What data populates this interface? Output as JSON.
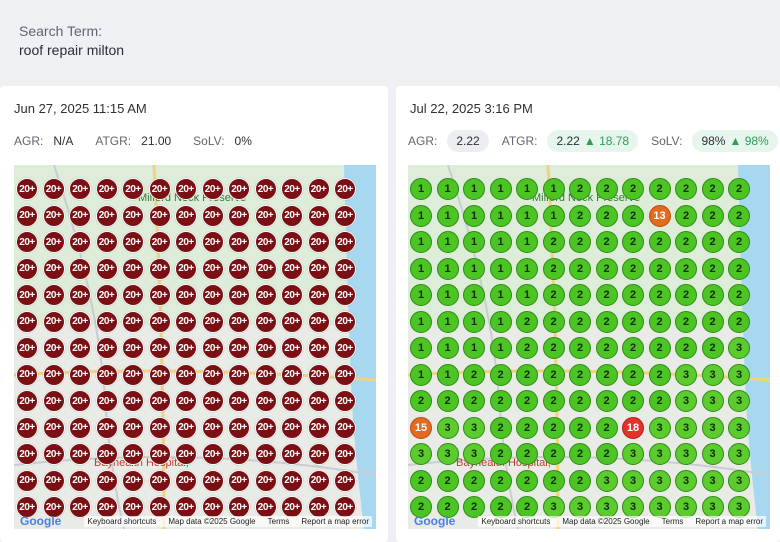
{
  "search": {
    "label": "Search Term:",
    "value": "roof repair milton"
  },
  "colors": {
    "rank_20plus": "#7a0f14",
    "rank_top3": "#4cc424",
    "rank_mid": "#e36a1e",
    "rank_high": "#e3322a",
    "water": "#a8d8f0",
    "map_bg": "#e9ece6"
  },
  "left": {
    "date": "Jun 27, 2025 11:15 AM",
    "metrics": {
      "agr_label": "AGR:",
      "agr_value": "N/A",
      "atgr_label": "ATGR:",
      "atgr_value": "21.00",
      "solv_label": "SoLV:",
      "solv_value": "0%"
    },
    "grid": [
      [
        "20+",
        "20+",
        "20+",
        "20+",
        "20+",
        "20+",
        "20+",
        "20+",
        "20+",
        "20+",
        "20+",
        "20+",
        "20+"
      ],
      [
        "20+",
        "20+",
        "20+",
        "20+",
        "20+",
        "20+",
        "20+",
        "20+",
        "20+",
        "20+",
        "20+",
        "20+",
        "20+"
      ],
      [
        "20+",
        "20+",
        "20+",
        "20+",
        "20+",
        "20+",
        "20+",
        "20+",
        "20+",
        "20+",
        "20+",
        "20+",
        "20+"
      ],
      [
        "20+",
        "20+",
        "20+",
        "20+",
        "20+",
        "20+",
        "20+",
        "20+",
        "20+",
        "20+",
        "20+",
        "20+",
        "20+"
      ],
      [
        "20+",
        "20+",
        "20+",
        "20+",
        "20+",
        "20+",
        "20+",
        "20+",
        "20+",
        "20+",
        "20+",
        "20+",
        "20+"
      ],
      [
        "20+",
        "20+",
        "20+",
        "20+",
        "20+",
        "20+",
        "20+",
        "20+",
        "20+",
        "20+",
        "20+",
        "20+",
        "20+"
      ],
      [
        "20+",
        "20+",
        "20+",
        "20+",
        "20+",
        "20+",
        "20+",
        "20+",
        "20+",
        "20+",
        "20+",
        "20+",
        "20+"
      ],
      [
        "20+",
        "20+",
        "20+",
        "20+",
        "20+",
        "20+",
        "20+",
        "20+",
        "20+",
        "20+",
        "20+",
        "20+",
        "20+"
      ],
      [
        "20+",
        "20+",
        "20+",
        "20+",
        "20+",
        "20+",
        "20+",
        "20+",
        "20+",
        "20+",
        "20+",
        "20+",
        "20+"
      ],
      [
        "20+",
        "20+",
        "20+",
        "20+",
        "20+",
        "20+",
        "20+",
        "20+",
        "20+",
        "20+",
        "20+",
        "20+",
        "20+"
      ],
      [
        "20+",
        "20+",
        "20+",
        "20+",
        "20+",
        "20+",
        "20+",
        "20+",
        "20+",
        "20+",
        "20+",
        "20+",
        "20+"
      ],
      [
        "20+",
        "20+",
        "20+",
        "20+",
        "20+",
        "20+",
        "20+",
        "20+",
        "20+",
        "20+",
        "20+",
        "20+",
        "20+"
      ],
      [
        "20+",
        "20+",
        "20+",
        "20+",
        "20+",
        "20+",
        "20+",
        "20+",
        "20+",
        "20+",
        "20+",
        "20+",
        "20+"
      ]
    ]
  },
  "right": {
    "date": "Jul 22, 2025 3:16 PM",
    "metrics": {
      "agr_label": "AGR:",
      "agr_value": "2.22",
      "atgr_label": "ATGR:",
      "atgr_value": "2.22",
      "atgr_delta": "18.78",
      "solv_label": "SoLV:",
      "solv_value": "98%",
      "solv_delta": "98%"
    },
    "grid": [
      [
        "1",
        "1",
        "1",
        "1",
        "1",
        "1",
        "2",
        "2",
        "2",
        "2",
        "2",
        "2",
        "2"
      ],
      [
        "1",
        "1",
        "1",
        "1",
        "1",
        "1",
        "2",
        "2",
        "2",
        "13",
        "2",
        "2",
        "2"
      ],
      [
        "1",
        "1",
        "1",
        "1",
        "1",
        "2",
        "2",
        "2",
        "2",
        "2",
        "2",
        "2",
        "2"
      ],
      [
        "1",
        "1",
        "1",
        "1",
        "1",
        "2",
        "2",
        "2",
        "2",
        "2",
        "2",
        "2",
        "2"
      ],
      [
        "1",
        "1",
        "1",
        "1",
        "1",
        "2",
        "2",
        "2",
        "2",
        "2",
        "2",
        "2",
        "2"
      ],
      [
        "1",
        "1",
        "1",
        "1",
        "2",
        "2",
        "2",
        "2",
        "2",
        "2",
        "2",
        "2",
        "2"
      ],
      [
        "1",
        "1",
        "1",
        "1",
        "2",
        "2",
        "2",
        "2",
        "2",
        "2",
        "2",
        "2",
        "3"
      ],
      [
        "1",
        "1",
        "2",
        "2",
        "2",
        "2",
        "2",
        "2",
        "2",
        "2",
        "3",
        "3",
        "3"
      ],
      [
        "2",
        "2",
        "2",
        "2",
        "2",
        "2",
        "2",
        "2",
        "2",
        "2",
        "3",
        "3",
        "3"
      ],
      [
        "15",
        "3",
        "3",
        "2",
        "2",
        "2",
        "2",
        "2",
        "18",
        "3",
        "3",
        "3",
        "3"
      ],
      [
        "3",
        "3",
        "3",
        "2",
        "2",
        "2",
        "2",
        "2",
        "3",
        "3",
        "3",
        "3",
        "3"
      ],
      [
        "2",
        "2",
        "2",
        "2",
        "2",
        "2",
        "2",
        "3",
        "3",
        "3",
        "3",
        "3",
        "3"
      ],
      [
        "2",
        "2",
        "2",
        "2",
        "2",
        "3",
        "3",
        "3",
        "3",
        "3",
        "3",
        "3",
        "3"
      ]
    ]
  },
  "map": {
    "labels": {
      "preserve": "Milford Neck Preserve",
      "hospital": "Bayhealth Hospital,",
      "google": "Google"
    },
    "footer": {
      "shortcuts": "Keyboard shortcuts",
      "mapdata": "Map data ©2025 Google",
      "terms": "Terms",
      "report": "Report a map error"
    }
  }
}
